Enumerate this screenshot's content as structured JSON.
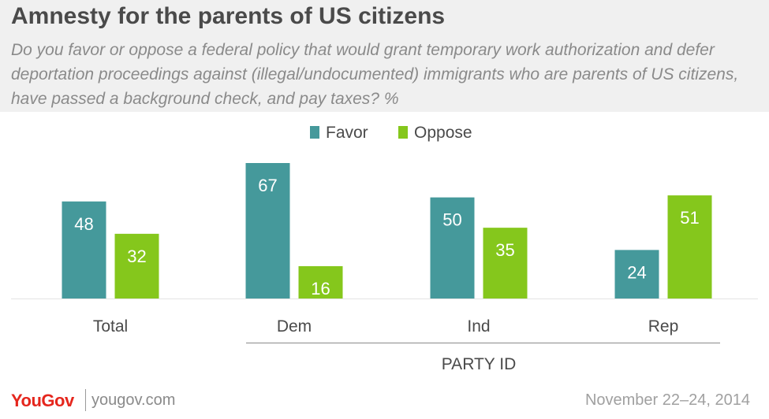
{
  "header": {
    "title": "Amnesty for the parents of US citizens",
    "subtitle": "Do you favor or oppose a federal policy that would grant temporary work authorization and defer deportation proceedings against (illegal/undocumented) immigrants who are parents of US citizens, have passed a background check, and pay taxes? %"
  },
  "colors": {
    "favor": "#45999b",
    "oppose": "#85c71c",
    "header_bg": "#f0f0f0",
    "brand": "#e5261d"
  },
  "chart_data": {
    "type": "bar",
    "categories": [
      "Total",
      "Dem",
      "Ind",
      "Rep"
    ],
    "series": [
      {
        "name": "Favor",
        "values": [
          48,
          67,
          50,
          24
        ]
      },
      {
        "name": "Oppose",
        "values": [
          32,
          16,
          35,
          51
        ]
      }
    ],
    "group_label": "PARTY ID",
    "ylim": [
      0,
      67
    ],
    "legend_position": "top-center",
    "grid": false
  },
  "footer": {
    "logo": "YouGov",
    "url": "yougov.com",
    "date": "November 22–24, 2014"
  }
}
